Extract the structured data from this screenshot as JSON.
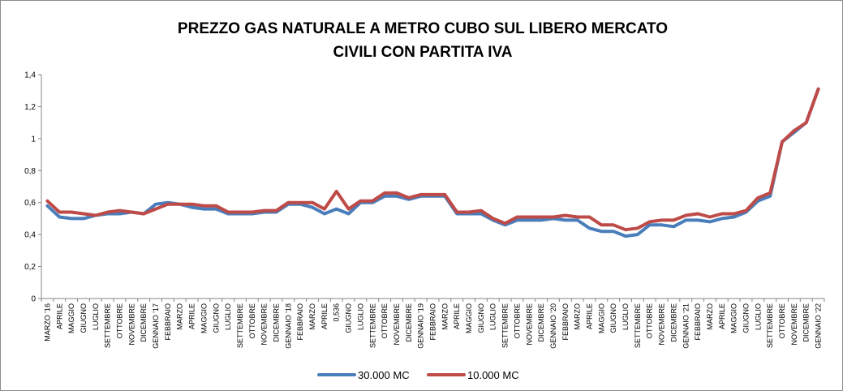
{
  "chart_data": {
    "type": "line",
    "title": "PREZZO GAS NATURALE A METRO CUBO SUL LIBERO MERCATO",
    "subtitle": "CIVILI CON PARTITA IVA",
    "xlabel": "",
    "ylabel": "",
    "ylim": [
      0,
      1.4
    ],
    "yticks": [
      "0",
      "0,2",
      "0,4",
      "0,6",
      "0,8",
      "1",
      "1,2",
      "1,4"
    ],
    "grid": false,
    "legend_position": "bottom",
    "categories": [
      "MARZO '16",
      "APRILE",
      "MAGGIO",
      "GIUGNO",
      "LUGLIO",
      "SETTEMBRE",
      "OTTOBRE",
      "NOVEMBRE",
      "DICEMBRE",
      "GENNAIO '17",
      "FEBBRAIO",
      "MARZO",
      "APRILE",
      "MAGGIO",
      "GIUGNO",
      "LUGLIO",
      "SETTEMBRE",
      "OTTOBRE",
      "NOVEMBRE",
      "DICEMBRE",
      "GENNAIO '18",
      "FEBBRAIO",
      "MARZO",
      "APRILE",
      "0,536",
      "GIUGNO",
      "LUGLIO",
      "SETTEMBRE",
      "OTTOBRE",
      "NOVEMBRE",
      "DICEMBRE",
      "GENNAIO '19",
      "FEBBRAIO",
      "MARZO",
      "APRILE",
      "MAGGIO",
      "GIUGNO",
      "LUGLIO",
      "SETTEMBRE",
      "OTTOBRE",
      "NOVEMBRE",
      "DICEMBRE",
      "GENNAIO '20",
      "FEBBRAIO",
      "MARZO",
      "APRILE",
      "MAGGIO",
      "GIUGNO",
      "LUGLIO",
      "SETTEMBRE",
      "OTTOBRE",
      "NOVEMBRE",
      "DICEMBRE",
      "GENNAIO '21",
      "FEBBRAIO",
      "MARZO",
      "APRILE",
      "MAGGIO",
      "GIUGNO",
      "LUGLIO",
      "SETTEMBRE",
      "OTTOBRE",
      "NOVEMBRE",
      "DICEMBRE",
      "GENNAIO '22"
    ],
    "series": [
      {
        "name": "30.000 MC",
        "color": "#4a7ebb",
        "values": [
          0.58,
          0.51,
          0.5,
          0.5,
          0.52,
          0.53,
          0.53,
          0.54,
          0.53,
          0.59,
          0.6,
          0.59,
          0.57,
          0.56,
          0.56,
          0.53,
          0.53,
          0.53,
          0.54,
          0.54,
          0.59,
          0.59,
          0.57,
          0.53,
          0.56,
          0.53,
          0.6,
          0.6,
          0.64,
          0.64,
          0.62,
          0.64,
          0.64,
          0.64,
          0.53,
          0.53,
          0.53,
          0.49,
          0.46,
          0.49,
          0.49,
          0.49,
          0.5,
          0.49,
          0.49,
          0.44,
          0.42,
          0.42,
          0.39,
          0.4,
          0.46,
          0.46,
          0.45,
          0.49,
          0.49,
          0.48,
          0.5,
          0.51,
          0.54,
          0.61,
          0.64,
          0.98,
          1.04,
          1.1,
          1.31
        ]
      },
      {
        "name": "10.000 MC",
        "color": "#be4b48",
        "values": [
          0.61,
          0.54,
          0.54,
          0.53,
          0.52,
          0.54,
          0.55,
          0.54,
          0.53,
          0.56,
          0.59,
          0.59,
          0.59,
          0.58,
          0.58,
          0.54,
          0.54,
          0.54,
          0.55,
          0.55,
          0.6,
          0.6,
          0.6,
          0.56,
          0.67,
          0.56,
          0.61,
          0.61,
          0.66,
          0.66,
          0.63,
          0.65,
          0.65,
          0.65,
          0.54,
          0.54,
          0.55,
          0.5,
          0.47,
          0.51,
          0.51,
          0.51,
          0.51,
          0.52,
          0.51,
          0.51,
          0.46,
          0.46,
          0.43,
          0.44,
          0.48,
          0.49,
          0.49,
          0.52,
          0.53,
          0.51,
          0.53,
          0.53,
          0.55,
          0.63,
          0.66,
          0.98,
          1.05,
          1.1,
          1.31
        ]
      }
    ]
  }
}
